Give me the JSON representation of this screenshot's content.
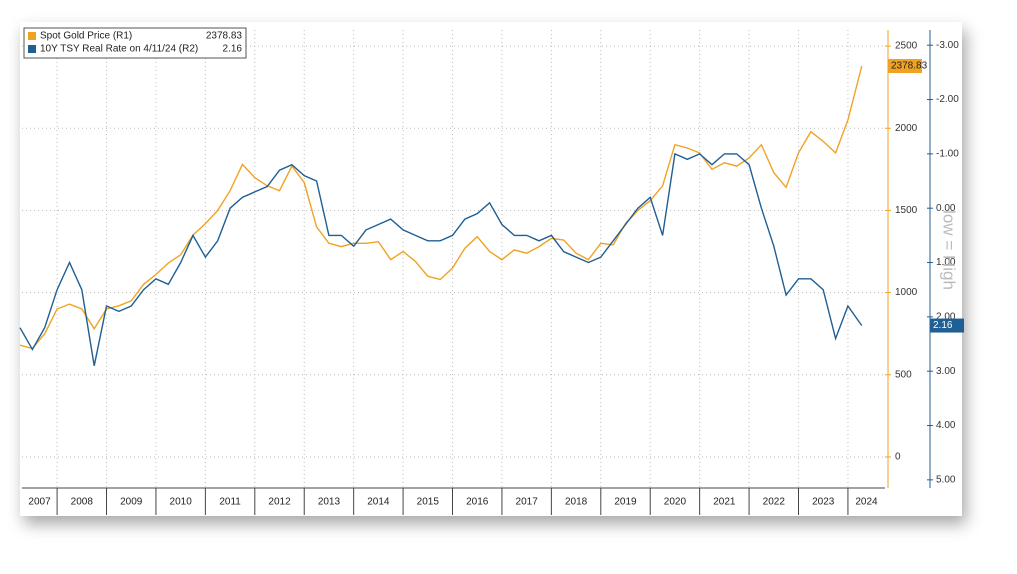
{
  "chart_data": {
    "type": "line",
    "legend": "top-left",
    "annotation": "low = High",
    "x": [
      2007.25,
      2007.5,
      2007.75,
      2008,
      2008.25,
      2008.5,
      2008.75,
      2009,
      2009.25,
      2009.5,
      2009.75,
      2010,
      2010.25,
      2010.5,
      2010.75,
      2011,
      2011.25,
      2011.5,
      2011.75,
      2012,
      2012.25,
      2012.5,
      2012.75,
      2013,
      2013.25,
      2013.5,
      2013.75,
      2014,
      2014.25,
      2014.5,
      2014.75,
      2015,
      2015.25,
      2015.5,
      2015.75,
      2016,
      2016.25,
      2016.5,
      2016.75,
      2017,
      2017.25,
      2017.5,
      2017.75,
      2018,
      2018.25,
      2018.5,
      2018.75,
      2019,
      2019.25,
      2019.5,
      2019.75,
      2020,
      2020.25,
      2020.5,
      2020.75,
      2021,
      2021.25,
      2021.5,
      2021.75,
      2022,
      2022.25,
      2022.5,
      2022.75,
      2023,
      2023.25,
      2023.5,
      2023.75,
      2024,
      2024.28
    ],
    "xlim": [
      2007.29,
      2024.75
    ],
    "xticks": [
      2007,
      2008,
      2009,
      2010,
      2011,
      2012,
      2013,
      2014,
      2015,
      2016,
      2017,
      2018,
      2019,
      2020,
      2021,
      2022,
      2023,
      2024
    ],
    "ylim": [
      -189,
      2598
    ],
    "yticks": [
      0,
      500,
      1000,
      1500,
      2000,
      2500
    ],
    "y2lim": [
      5.15,
      -3.28
    ],
    "y2ticks": [
      {
        "value": -3,
        "label": "-3.00"
      },
      {
        "value": -2,
        "label": "-2.00"
      },
      {
        "value": -1,
        "label": "-1.00"
      },
      {
        "value": 0,
        "label": "0.00"
      },
      {
        "value": 1,
        "label": "1.00"
      },
      {
        "value": 2,
        "label": "2.00"
      },
      {
        "value": 3,
        "label": "3.00"
      },
      {
        "value": 4,
        "label": "4.00"
      },
      {
        "value": 5,
        "label": "5.00"
      }
    ],
    "grid": true,
    "series": [
      {
        "name": "Spot Gold Price (R1)",
        "last_label": "2378.83",
        "color": "#f0a323",
        "axis": "y",
        "values": [
          680,
          660,
          750,
          900,
          930,
          900,
          780,
          900,
          920,
          950,
          1050,
          1110,
          1180,
          1230,
          1350,
          1420,
          1500,
          1620,
          1780,
          1700,
          1650,
          1620,
          1770,
          1670,
          1400,
          1300,
          1280,
          1300,
          1300,
          1310,
          1200,
          1250,
          1190,
          1100,
          1080,
          1150,
          1270,
          1340,
          1250,
          1200,
          1260,
          1240,
          1280,
          1330,
          1320,
          1240,
          1200,
          1300,
          1290,
          1420,
          1500,
          1560,
          1650,
          1900,
          1880,
          1850,
          1750,
          1790,
          1770,
          1820,
          1900,
          1730,
          1640,
          1850,
          1980,
          1920,
          1850,
          2050,
          2378.83
        ]
      },
      {
        "name": "10Y TSY Real Rate on 4/11/24 (R2)",
        "last_label": "2.16",
        "color": "#1f5f94",
        "axis": "y2",
        "values": [
          2.2,
          2.6,
          2.2,
          1.5,
          1.0,
          1.5,
          2.9,
          1.8,
          1.9,
          1.8,
          1.5,
          1.3,
          1.4,
          1.0,
          0.5,
          0.9,
          0.6,
          0.0,
          -0.2,
          -0.3,
          -0.4,
          -0.7,
          -0.8,
          -0.6,
          -0.5,
          0.5,
          0.5,
          0.7,
          0.4,
          0.3,
          0.2,
          0.4,
          0.5,
          0.6,
          0.6,
          0.5,
          0.2,
          0.1,
          -0.1,
          0.3,
          0.5,
          0.5,
          0.6,
          0.5,
          0.8,
          0.9,
          1.0,
          0.9,
          0.6,
          0.3,
          0.0,
          -0.2,
          0.5,
          -1.0,
          -0.9,
          -1.0,
          -0.8,
          -1.0,
          -1.0,
          -0.8,
          0.0,
          0.7,
          1.6,
          1.3,
          1.3,
          1.5,
          2.4,
          1.8,
          2.16
        ]
      }
    ]
  }
}
